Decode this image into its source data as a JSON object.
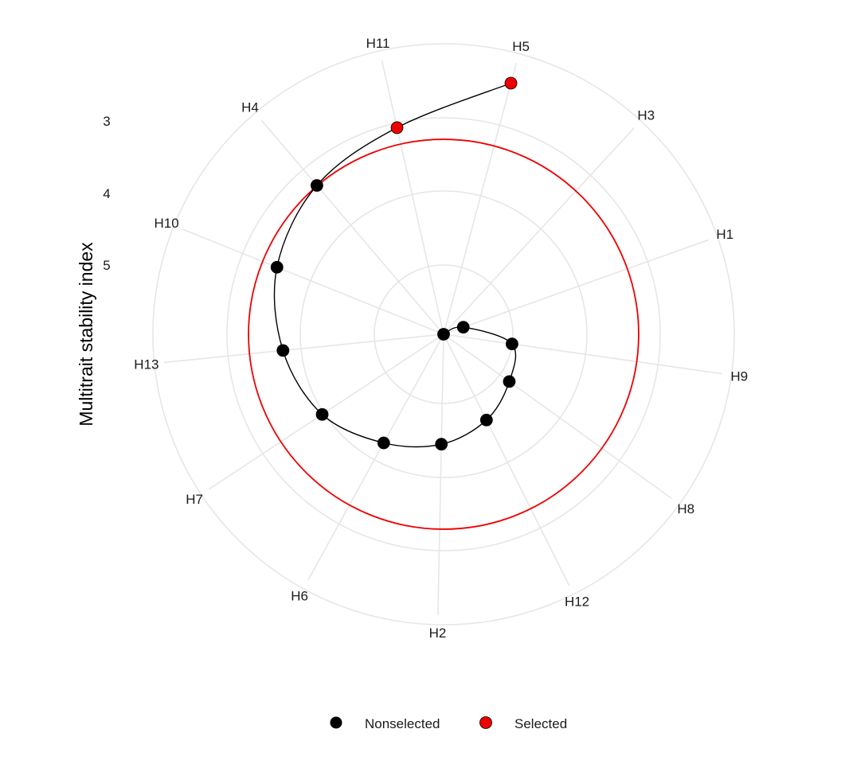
{
  "chart_data": {
    "type": "polar-line",
    "ylabel": "Multitrait stability index",
    "radial_ticks": [
      "3",
      "4",
      "5"
    ],
    "categories": [
      "H5",
      "H3",
      "H1",
      "H9",
      "H8",
      "H12",
      "H2",
      "H6",
      "H7",
      "H13",
      "H10",
      "H4",
      "H11"
    ],
    "points": [
      {
        "name": "H5",
        "value": 5.72,
        "status": "Selected"
      },
      {
        "name": "H11",
        "value": 4.66,
        "status": "Selected"
      },
      {
        "name": "H4",
        "value": 4.3,
        "status": "Nonselected"
      },
      {
        "name": "H10",
        "value": 3.95,
        "status": "Nonselected"
      },
      {
        "name": "H13",
        "value": 3.55,
        "status": "Nonselected"
      },
      {
        "name": "H7",
        "value": 3.2,
        "status": "Nonselected"
      },
      {
        "name": "H6",
        "value": 2.73,
        "status": "Nonselected"
      },
      {
        "name": "H2",
        "value": 2.42,
        "status": "Nonselected"
      },
      {
        "name": "H12",
        "value": 2.11,
        "status": "Nonselected"
      },
      {
        "name": "H8",
        "value": 1.78,
        "status": "Nonselected"
      },
      {
        "name": "H9",
        "value": 1.52,
        "status": "Nonselected"
      },
      {
        "name": "H1",
        "value": 0.46,
        "status": "Nonselected"
      },
      {
        "name": "H3",
        "value": 0.0,
        "status": "Nonselected"
      }
    ],
    "cutoff_circle": 4.29,
    "grid": true,
    "legend": {
      "position": "bottom",
      "items": [
        {
          "label": "Nonselected",
          "color": "#000000"
        },
        {
          "label": "Selected",
          "color": "#ee0000"
        }
      ]
    }
  },
  "colors": {
    "selected": "#ee0000",
    "nonselected": "#000000",
    "grid": "#e6e6e6",
    "cutoff": "#ee0000"
  }
}
